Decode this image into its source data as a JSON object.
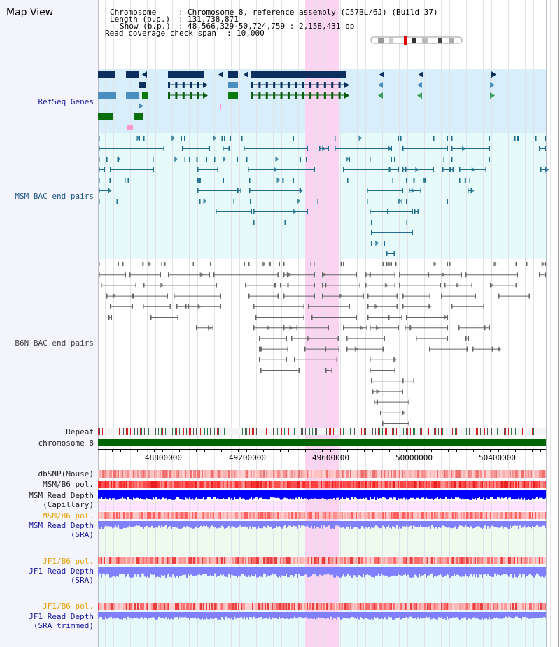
{
  "page": {
    "title": "Map View"
  },
  "header": {
    "chromosome_label": "Chromosome",
    "chromosome_value": "Chromosome 8, reference assembly (C57BL/6J) (Build 37)",
    "length_label": "Length (b.p.)",
    "length_value": "131,738,871",
    "show_label": "Show (b.p.)",
    "show_value": "48,566,329-50,724,759 : 2,158,431 bp",
    "coverage_label": "Read coverage check span",
    "coverage_value": "10,000"
  },
  "tracks": {
    "refseq": "RefSeq Genes",
    "msm_bac": "MSM BAC end pairs",
    "b6n_bac": "B6N BAC end pairs",
    "repeat": "Repeat",
    "chromosome": "chromosome 8",
    "dbsnp": "dbSNP(Mouse)",
    "msm_pol": "MSM/B6 pol.",
    "msm_depth_cap_1": "MSM Read Depth",
    "msm_depth_cap_2": "(Capillary)",
    "msm_pol2": "MSM/B6 pol.",
    "msm_depth_sra_1": "MSM Read Depth",
    "msm_depth_sra_2": "(SRA)",
    "jf1_pol": "JF1/B6 pol.",
    "jf1_depth_sra_1": "JF1 Read Depth",
    "jf1_depth_sra_2": "(SRA)",
    "jf1_pol2": "JF1/B6 pol.",
    "jf1_depth_trim_1": "JF1 Read Depth",
    "jf1_depth_trim_2": "(SRA trimmed)"
  },
  "ruler": {
    "ticks": [
      "48800000",
      "49200000",
      "49600000",
      "50000000",
      "50400000"
    ]
  },
  "colors": {
    "refseq_bg": "#d8eefa",
    "bac_bg": "#e6fafa",
    "highlight": "#fad4f0",
    "chromosome_bar": "#006400",
    "refseq_gene": "#0d2f60",
    "msm_pair": "#1f6e8e",
    "b6n_pair": "#666666",
    "depth_dark": "#0000ff",
    "depth_light": "#8080ff"
  }
}
